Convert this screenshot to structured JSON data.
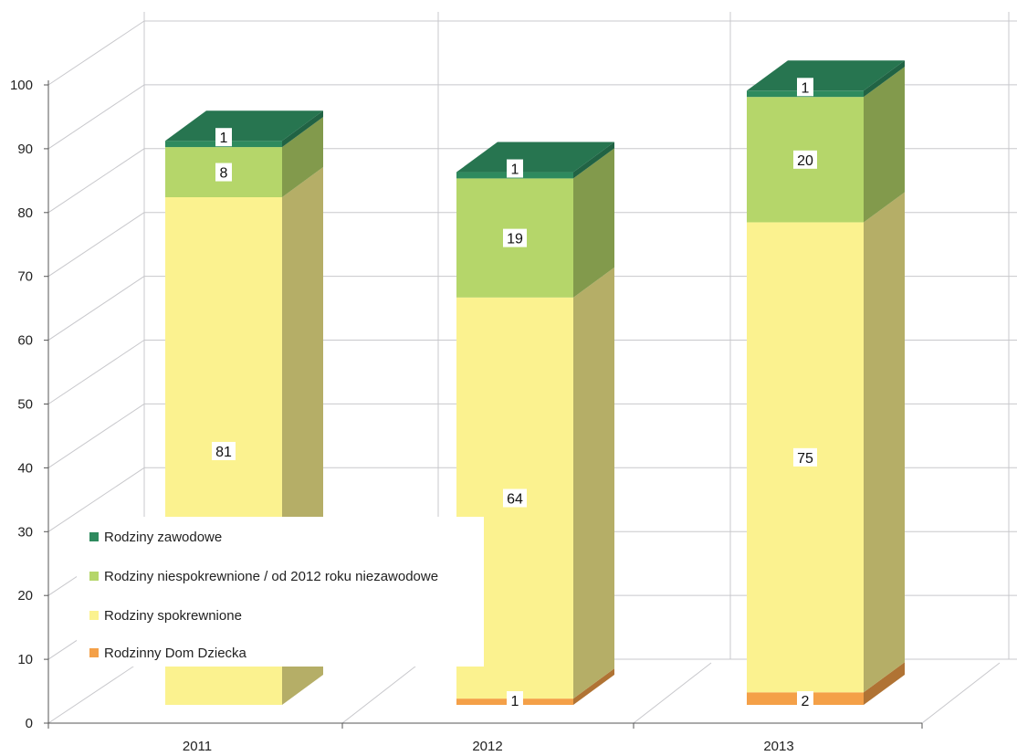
{
  "chart_data": {
    "type": "bar",
    "stacked": true,
    "three_d": true,
    "categories": [
      "2011",
      "2012",
      "2013"
    ],
    "series": [
      {
        "name": "Rodzinny Dom Dziecka",
        "values": [
          0,
          1,
          2
        ],
        "color": "#f4a048"
      },
      {
        "name": "Rodziny spokrewnione",
        "values": [
          81,
          64,
          75
        ],
        "color": "#fbf28f"
      },
      {
        "name": "Rodziny niespokrewnione / od 2012 roku niezawodowe",
        "values": [
          8,
          19,
          20
        ],
        "color": "#b5d66a"
      },
      {
        "name": "Rodziny zawodowe",
        "values": [
          1,
          1,
          1
        ],
        "color": "#2e8a5e"
      }
    ],
    "data_labels": [
      [
        "",
        "81",
        "8",
        "1"
      ],
      [
        "1",
        "64",
        "19",
        "1"
      ],
      [
        "2",
        "75",
        "20",
        "1"
      ]
    ],
    "y_ticks": [
      "0",
      "10",
      "20",
      "30",
      "40",
      "50",
      "60",
      "70",
      "80",
      "90",
      "100"
    ],
    "ylim": [
      0,
      100
    ],
    "grid": true,
    "legend_position": "bottom-left inside",
    "title": "",
    "xlabel": "",
    "ylabel": ""
  },
  "legend": [
    {
      "label": "Rodziny zawodowe",
      "color": "#2e8a5e"
    },
    {
      "label": "Rodziny niespokrewnione / od 2012 roku niezawodowe",
      "color": "#b5d66a"
    },
    {
      "label": "Rodziny spokrewnione",
      "color": "#fbf28f"
    },
    {
      "label": "Rodzinny Dom Dziecka",
      "color": "#f4a048"
    }
  ]
}
